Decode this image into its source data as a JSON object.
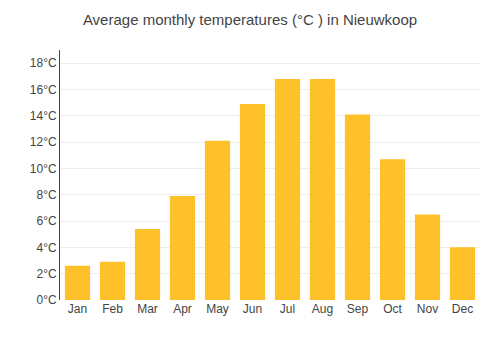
{
  "chart_data": {
    "type": "bar",
    "title": "Average monthly temperatures (°C ) in Nieuwkoop",
    "categories": [
      "Jan",
      "Feb",
      "Mar",
      "Apr",
      "May",
      "Jun",
      "Jul",
      "Aug",
      "Sep",
      "Oct",
      "Nov",
      "Dec"
    ],
    "values": [
      2.6,
      2.9,
      5.4,
      7.9,
      12.1,
      14.9,
      16.8,
      16.8,
      14.1,
      10.7,
      6.5,
      4.0
    ],
    "color": "#FFC12A",
    "ylim": [
      0,
      19
    ],
    "yticks": [
      {
        "value": 0,
        "label": "0°C"
      },
      {
        "value": 2,
        "label": "2°C"
      },
      {
        "value": 4,
        "label": "4°C"
      },
      {
        "value": 6,
        "label": "6°C"
      },
      {
        "value": 8,
        "label": "8°C"
      },
      {
        "value": 10,
        "label": "10°C"
      },
      {
        "value": 12,
        "label": "12°C"
      },
      {
        "value": 14,
        "label": "14°C"
      },
      {
        "value": 16,
        "label": "16°C"
      },
      {
        "value": 18,
        "label": "18°C"
      }
    ],
    "grid": true
  }
}
